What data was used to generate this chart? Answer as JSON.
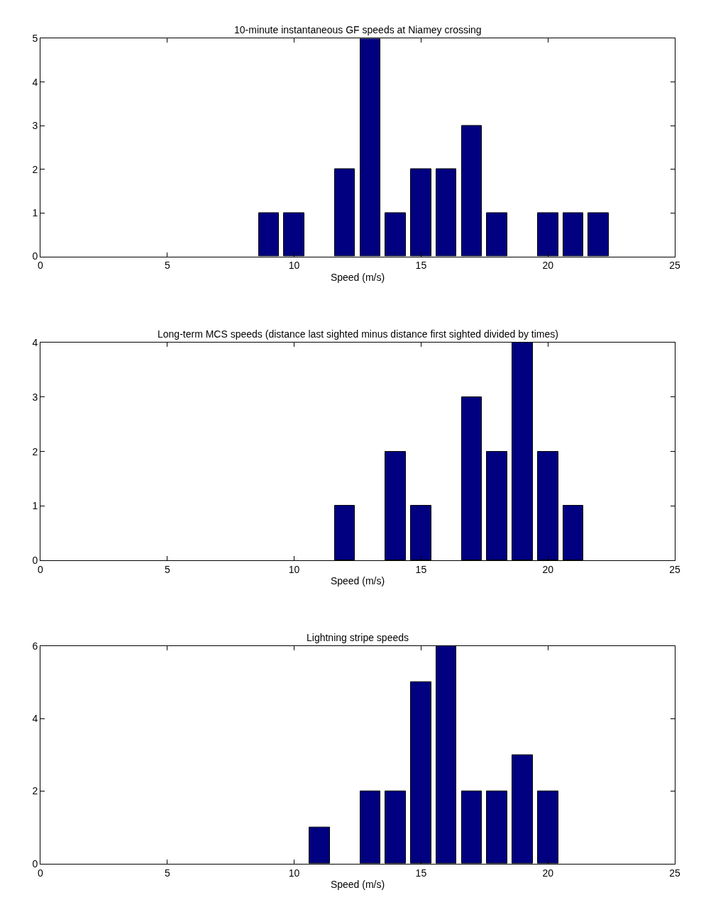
{
  "chart_data": [
    {
      "type": "bar",
      "title": "10-minute instantaneous GF speeds at Niamey crossing",
      "xlabel": "Speed (m/s)",
      "x": [
        9,
        10,
        12,
        13,
        14,
        15,
        16,
        17,
        18,
        20,
        21,
        22
      ],
      "values": [
        1,
        1,
        2,
        5,
        1,
        2,
        2,
        3,
        1,
        1,
        1,
        1
      ],
      "color": "#000080",
      "xlim": [
        0,
        25
      ],
      "xticks": [
        0,
        5,
        10,
        15,
        20,
        25
      ],
      "ylim": [
        0,
        5
      ],
      "yticks": [
        0,
        1,
        2,
        3,
        4,
        5
      ]
    },
    {
      "type": "bar",
      "title": "Long-term MCS speeds (distance last sighted minus distance first sighted divided by times)",
      "xlabel": "Speed (m/s)",
      "x": [
        12,
        14,
        15,
        17,
        18,
        19,
        20,
        21
      ],
      "values": [
        1,
        2,
        1,
        3,
        2,
        4,
        2,
        1
      ],
      "color": "#000080",
      "xlim": [
        0,
        25
      ],
      "xticks": [
        0,
        5,
        10,
        15,
        20,
        25
      ],
      "ylim": [
        0,
        4
      ],
      "yticks": [
        0,
        1,
        2,
        3,
        4
      ]
    },
    {
      "type": "bar",
      "title": "Lightning stripe speeds",
      "xlabel": "Speed (m/s)",
      "x": [
        11,
        13,
        14,
        15,
        16,
        17,
        18,
        19,
        20
      ],
      "values": [
        1,
        2,
        2,
        5,
        6,
        2,
        2,
        3,
        2
      ],
      "color": "#000080",
      "xlim": [
        0,
        25
      ],
      "xticks": [
        0,
        5,
        10,
        15,
        20,
        25
      ],
      "ylim": [
        0,
        6
      ],
      "yticks": [
        0,
        2,
        4,
        6
      ]
    }
  ]
}
